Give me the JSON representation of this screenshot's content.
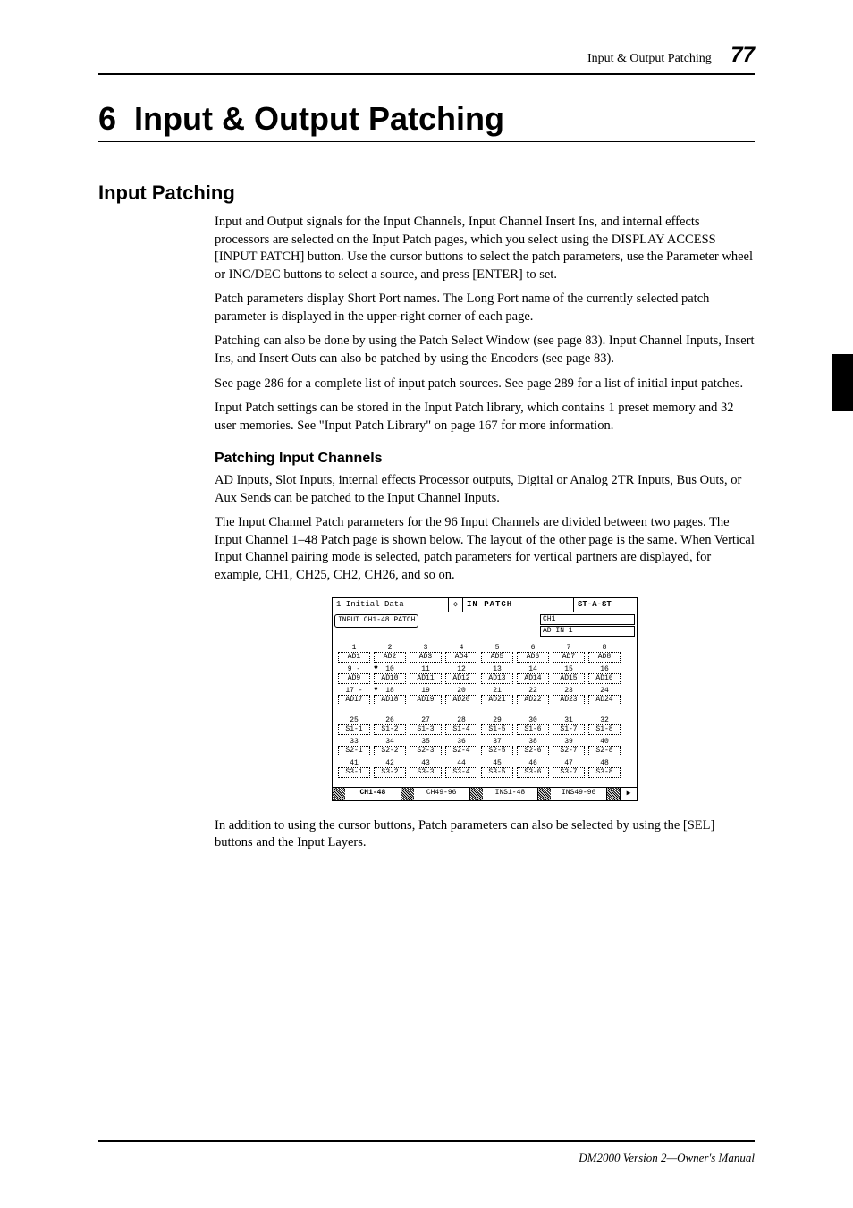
{
  "page": {
    "running_head": "Input & Output Patching",
    "number": "77",
    "footer": "DM2000 Version 2—Owner's Manual"
  },
  "chapter": {
    "number": "6",
    "title": "Input & Output Patching"
  },
  "h2_input_patching": "Input Patching",
  "para1": "Input and Output signals for the Input Channels, Input Channel Insert Ins, and internal effects processors are selected on the Input Patch pages, which you select using the DISPLAY ACCESS [INPUT PATCH] button. Use the cursor buttons to select the patch parameters, use the Parameter wheel or INC/DEC buttons to select a source, and press [ENTER] to set.",
  "para2": "Patch parameters display Short Port names. The Long Port name of the currently selected patch parameter is displayed in the upper-right corner of each page.",
  "para3": "Patching can also be done by using the Patch Select Window (see page 83). Input Channel Inputs, Insert Ins, and Insert Outs can also be patched by using the Encoders (see page 83).",
  "para4": "See page 286 for a complete list of input patch sources. See page 289 for a list of initial input patches.",
  "para5": "Input Patch settings can be stored in the Input Patch library, which contains 1 preset memory and 32 user memories. See \"Input Patch Library\" on page 167 for more information.",
  "h3_patching_input_channels": "Patching Input Channels",
  "para6": "AD Inputs, Slot Inputs, internal effects Processor outputs, Digital or Analog 2TR Inputs, Bus Outs, or Aux Sends can be patched to the Input Channel Inputs.",
  "para7": "The Input Channel Patch parameters for the 96 Input Channels are divided between two pages. The Input Channel 1–48 Patch page is shown below. The layout of the other page is the same. When Vertical Input Channel pairing mode is selected, patch parameters for vertical partners are displayed, for example, CH1, CH25, CH2, CH26, and so on.",
  "para8": "In addition to using the cursor buttons, Patch parameters can also be selected by using the [SEL] buttons and the Input Layers.",
  "lcd": {
    "scene": "1 Initial Data",
    "mid_icon": "◇",
    "title": "IN PATCH",
    "right": "ST-A-ST",
    "sub_tab": "INPUT CH1-48 PATCH",
    "ch_line1": "CH1",
    "ch_line2": "AD IN 1",
    "rows": [
      {
        "nums": [
          "1",
          "2",
          "3",
          "4",
          "5",
          "6",
          "7",
          "8"
        ],
        "vals": [
          "AD1",
          "AD2",
          "AD3",
          "AD4",
          "AD5",
          "AD6",
          "AD7",
          "AD8"
        ],
        "heart": null
      },
      {
        "nums": [
          "9",
          "10",
          "11",
          "12",
          "13",
          "14",
          "15",
          "16"
        ],
        "vals": [
          "AD9",
          "AD10",
          "AD11",
          "AD12",
          "AD13",
          "AD14",
          "AD15",
          "AD16"
        ],
        "heart": 0
      },
      {
        "nums": [
          "17",
          "18",
          "19",
          "20",
          "21",
          "22",
          "23",
          "24"
        ],
        "vals": [
          "AD17",
          "AD18",
          "AD19",
          "AD20",
          "AD21",
          "AD22",
          "AD23",
          "AD24"
        ],
        "heart": 0
      },
      {
        "nums": [
          "25",
          "26",
          "27",
          "28",
          "29",
          "30",
          "31",
          "32"
        ],
        "vals": [
          "S1-1",
          "S1-2",
          "S1-3",
          "S1-4",
          "S1-5",
          "S1-6",
          "S1-7",
          "S1-8"
        ],
        "heart": null
      },
      {
        "nums": [
          "33",
          "34",
          "35",
          "36",
          "37",
          "38",
          "39",
          "40"
        ],
        "vals": [
          "S2-1",
          "S2-2",
          "S2-3",
          "S2-4",
          "S2-5",
          "S2-6",
          "S2-7",
          "S2-8"
        ],
        "heart": null
      },
      {
        "nums": [
          "41",
          "42",
          "43",
          "44",
          "45",
          "46",
          "47",
          "48"
        ],
        "vals": [
          "S3-1",
          "S3-2",
          "S3-3",
          "S3-4",
          "S3-5",
          "S3-6",
          "S3-7",
          "S3-8"
        ],
        "heart": null
      }
    ],
    "tabs": [
      "CH1-48",
      "CH49-96",
      "INS1-48",
      "INS49-96"
    ],
    "active_tab": 0,
    "arrow": "▶"
  },
  "colors": {
    "text": "#000000",
    "bg": "#ffffff"
  }
}
